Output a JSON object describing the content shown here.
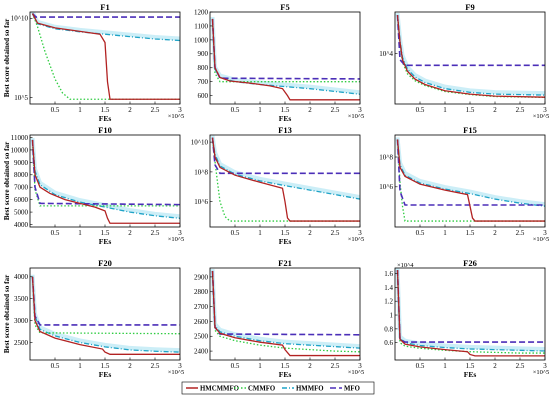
{
  "figure": {
    "legend": [
      {
        "name": "HMCMMFO",
        "color": "#b22222",
        "dash": ""
      },
      {
        "name": "CMMFO",
        "color": "#2ecc40",
        "dash": "1.5,2"
      },
      {
        "name": "HMMFO",
        "color": "#1fa3c7",
        "dash": "5,2,1,2"
      },
      {
        "name": "MFO",
        "color": "#4b2fb8",
        "dash": "6,3"
      }
    ]
  },
  "chart_data": [
    {
      "type": "line",
      "title": "F1",
      "xlabel": "FEs",
      "ylabel": "Best score obtained so far",
      "xscale_note": "×10^5",
      "log": true,
      "ylim": [
        40000,
        25000000000
      ],
      "xlim": [
        0,
        3
      ],
      "xticks": [
        0.5,
        1,
        1.5,
        2,
        2.5,
        3
      ],
      "xtick_labels": [
        "0.5",
        "1",
        "1.5",
        "2",
        "2.5",
        "3"
      ],
      "yticks": [
        10000000000,
        100000
      ],
      "ytick_labels": [
        "10^10",
        "10^5"
      ],
      "series": [
        {
          "name": "HMCMMFO",
          "x": [
            0.05,
            0.15,
            0.5,
            1.0,
            1.4,
            1.5,
            1.55,
            1.6,
            3.0
          ],
          "y": [
            20000000000,
            5000000000,
            2500000000,
            1500000000,
            1000000000,
            300000000,
            1000000,
            80000,
            80000
          ]
        },
        {
          "name": "CMMFO",
          "x": [
            0.05,
            0.15,
            0.3,
            0.5,
            0.65,
            0.8,
            3.0
          ],
          "y": [
            20000000000,
            3000000000,
            80000000,
            1500000,
            200000,
            80000,
            80000
          ]
        },
        {
          "name": "HMMFO",
          "x": [
            0.05,
            0.15,
            0.5,
            1.0,
            1.5,
            2.0,
            2.5,
            3.0
          ],
          "y": [
            20000000000,
            4500000000,
            2200000000,
            1400000000,
            1000000000,
            700000000,
            500000000,
            400000000
          ]
        },
        {
          "name": "MFO",
          "x": [
            0.05,
            0.12,
            0.2,
            3.0
          ],
          "y": [
            20000000000,
            12000000000,
            12000000000,
            12000000000
          ]
        }
      ]
    },
    {
      "type": "line",
      "title": "F5",
      "xlabel": "FEs",
      "ylabel": "",
      "xscale_note": "×10^5",
      "log": false,
      "ylim": [
        540,
        1200
      ],
      "xlim": [
        0,
        3
      ],
      "xticks": [
        0.5,
        1,
        1.5,
        2,
        2.5,
        3
      ],
      "xtick_labels": [
        "0.5",
        "1",
        "1.5",
        "2",
        "2.5",
        "3"
      ],
      "yticks": [
        600,
        700,
        800,
        900,
        1000,
        1100,
        1200
      ],
      "ytick_labels": [
        "600",
        "700",
        "800",
        "900",
        "1000",
        "1100",
        "1200"
      ],
      "series": [
        {
          "name": "HMCMMFO",
          "x": [
            0.05,
            0.1,
            0.2,
            0.4,
            0.8,
            1.2,
            1.45,
            1.55,
            1.6,
            3.0
          ],
          "y": [
            1150,
            800,
            730,
            705,
            690,
            670,
            650,
            600,
            570,
            570
          ]
        },
        {
          "name": "CMMFO",
          "x": [
            0.05,
            0.1,
            0.2,
            3.0
          ],
          "y": [
            1150,
            760,
            700,
            700
          ]
        },
        {
          "name": "HMMFO",
          "x": [
            0.05,
            0.1,
            0.2,
            0.5,
            1.0,
            1.5,
            2.0,
            2.5,
            3.0
          ],
          "y": [
            1150,
            790,
            730,
            700,
            680,
            665,
            650,
            630,
            610
          ]
        },
        {
          "name": "MFO",
          "x": [
            0.05,
            0.1,
            0.2,
            3.0
          ],
          "y": [
            1150,
            800,
            725,
            720
          ]
        }
      ]
    },
    {
      "type": "line",
      "title": "F9",
      "xlabel": "",
      "ylabel": "",
      "xscale_note": "×10^5",
      "log": true,
      "ylim": [
        500,
        120000
      ],
      "xlim": [
        0,
        3
      ],
      "xticks": [
        0.5,
        1,
        1.5,
        2,
        2.5,
        3
      ],
      "xtick_labels": [
        "0.5",
        "1",
        "1.5",
        "2",
        "2.5",
        "3"
      ],
      "yticks": [
        10000
      ],
      "ytick_labels": [
        "10^4"
      ],
      "series": [
        {
          "name": "HMCMMFO",
          "x": [
            0.05,
            0.1,
            0.15,
            0.25,
            0.4,
            0.6,
            1.0,
            1.5,
            2.0,
            3.0
          ],
          "y": [
            100000,
            20000,
            7000,
            3500,
            2200,
            1600,
            1100,
            900,
            800,
            750
          ]
        },
        {
          "name": "CMMFO",
          "x": [
            0.05,
            0.1,
            0.15,
            0.25,
            0.4,
            0.6,
            1.0,
            1.5,
            2.0,
            3.0
          ],
          "y": [
            100000,
            18000,
            6000,
            3000,
            2000,
            1500,
            1050,
            880,
            780,
            740
          ]
        },
        {
          "name": "HMMFO",
          "x": [
            0.05,
            0.1,
            0.15,
            0.25,
            0.4,
            0.6,
            1.0,
            1.5,
            2.0,
            3.0
          ],
          "y": [
            100000,
            22000,
            8000,
            4000,
            2500,
            1800,
            1250,
            1000,
            900,
            850
          ]
        },
        {
          "name": "MFO",
          "x": [
            0.05,
            0.1,
            0.2,
            3.0
          ],
          "y": [
            100000,
            7000,
            5000,
            5000
          ]
        }
      ]
    },
    {
      "type": "line",
      "title": "F10",
      "xlabel": "FEs",
      "ylabel": "Best score obtained so far",
      "xscale_note": "×10^5",
      "log": false,
      "ylim": [
        3800,
        11200
      ],
      "xlim": [
        0,
        3
      ],
      "xticks": [
        0.5,
        1,
        1.5,
        2,
        2.5,
        3
      ],
      "xtick_labels": [
        "0.5",
        "1",
        "1.5",
        "2",
        "2.5",
        "3"
      ],
      "yticks": [
        4000,
        5000,
        6000,
        7000,
        8000,
        9000,
        10000,
        11000
      ],
      "ytick_labels": [
        "4000",
        "5000",
        "6000",
        "7000",
        "8000",
        "9000",
        "10000",
        "11000"
      ],
      "series": [
        {
          "name": "HMCMMFO",
          "x": [
            0.05,
            0.1,
            0.2,
            0.4,
            0.7,
            1.0,
            1.3,
            1.5,
            1.55,
            1.6,
            3.0
          ],
          "y": [
            10800,
            8000,
            7000,
            6500,
            6000,
            5700,
            5400,
            5100,
            4500,
            4100,
            4100
          ]
        },
        {
          "name": "CMMFO",
          "x": [
            0.05,
            0.1,
            0.2,
            3.0
          ],
          "y": [
            10800,
            6800,
            5500,
            5500
          ]
        },
        {
          "name": "HMMFO",
          "x": [
            0.05,
            0.1,
            0.2,
            0.5,
            1.0,
            1.5,
            2.0,
            2.5,
            3.0
          ],
          "y": [
            10800,
            8300,
            7200,
            6400,
            5800,
            5400,
            5000,
            4700,
            4500
          ]
        },
        {
          "name": "MFO",
          "x": [
            0.05,
            0.1,
            0.2,
            3.0
          ],
          "y": [
            10800,
            7000,
            5700,
            5600
          ]
        }
      ]
    },
    {
      "type": "line",
      "title": "F13",
      "xlabel": "FEs",
      "ylabel": "",
      "xscale_note": "×10^5",
      "log": true,
      "ylim": [
        20000,
        30000000000
      ],
      "xlim": [
        0,
        3
      ],
      "xticks": [
        0.5,
        1,
        1.5,
        2,
        2.5,
        3
      ],
      "xtick_labels": [
        "0.5",
        "1",
        "1.5",
        "2",
        "2.5",
        "3"
      ],
      "yticks": [
        10000000000,
        100000000,
        1000000
      ],
      "ytick_labels": [
        "10^10",
        "10^8",
        "10^6"
      ],
      "series": [
        {
          "name": "HMCMMFO",
          "x": [
            0.05,
            0.1,
            0.2,
            0.5,
            1.0,
            1.45,
            1.5,
            1.55,
            1.6,
            3.0
          ],
          "y": [
            20000000000,
            1000000000,
            200000000,
            60000000,
            20000000,
            8000000,
            1000000,
            80000,
            50000,
            50000
          ]
        },
        {
          "name": "CMMFO",
          "x": [
            0.05,
            0.1,
            0.15,
            0.2,
            0.3,
            0.4,
            3.0
          ],
          "y": [
            20000000000,
            500000000,
            20000000,
            1000000,
            100000,
            50000,
            50000
          ]
        },
        {
          "name": "HMMFO",
          "x": [
            0.05,
            0.1,
            0.2,
            0.5,
            1.0,
            1.5,
            2.0,
            2.5,
            3.0
          ],
          "y": [
            20000000000,
            1500000000,
            250000000,
            70000000,
            25000000,
            12000000,
            6000000,
            3000000,
            1500000
          ]
        },
        {
          "name": "MFO",
          "x": [
            0.05,
            0.1,
            0.2,
            3.0
          ],
          "y": [
            20000000000,
            300000000,
            80000000,
            80000000
          ]
        }
      ]
    },
    {
      "type": "line",
      "title": "F15",
      "xlabel": "",
      "ylabel": "",
      "xscale_note": "×10^5",
      "log": true,
      "ylim": [
        2000,
        3000000000
      ],
      "xlim": [
        0,
        3
      ],
      "xticks": [
        0.5,
        1,
        1.5,
        2,
        2.5,
        3
      ],
      "xtick_labels": [
        "0.5",
        "1",
        "1.5",
        "2",
        "2.5",
        "3"
      ],
      "yticks": [
        100000000,
        1000000
      ],
      "ytick_labels": [
        "10^8",
        "10^6"
      ],
      "series": [
        {
          "name": "HMCMMFO",
          "x": [
            0.05,
            0.1,
            0.2,
            0.5,
            1.0,
            1.45,
            1.5,
            1.55,
            1.6,
            3.0
          ],
          "y": [
            1500000000,
            20000000,
            5000000,
            1500000,
            600000,
            300000,
            50000,
            8000,
            5000,
            5000
          ]
        },
        {
          "name": "CMMFO",
          "x": [
            0.05,
            0.1,
            0.15,
            0.2,
            3.0
          ],
          "y": [
            1500000000,
            2000000,
            50000,
            5000,
            5000
          ]
        },
        {
          "name": "HMMFO",
          "x": [
            0.05,
            0.1,
            0.2,
            0.5,
            1.0,
            1.5,
            2.0,
            2.5,
            3.0
          ],
          "y": [
            1500000000,
            30000000,
            6000000,
            1800000,
            700000,
            350000,
            150000,
            80000,
            50000
          ]
        },
        {
          "name": "MFO",
          "x": [
            0.05,
            0.1,
            0.2,
            3.0
          ],
          "y": [
            1500000000,
            500000,
            60000,
            60000
          ]
        }
      ]
    },
    {
      "type": "line",
      "title": "F20",
      "xlabel": "FEs",
      "ylabel": "Best score obtained so far",
      "xscale_note": "×10^5",
      "log": false,
      "ylim": [
        2100,
        4200
      ],
      "xlim": [
        0,
        3
      ],
      "xticks": [
        0.5,
        1,
        1.5,
        2,
        2.5,
        3
      ],
      "xtick_labels": [
        "0.5",
        "1",
        "1.5",
        "2",
        "2.5",
        "3"
      ],
      "yticks": [
        2500,
        3000,
        3500,
        4000
      ],
      "ytick_labels": [
        "2500",
        "3000",
        "3500",
        "4000"
      ],
      "series": [
        {
          "name": "HMCMMFO",
          "x": [
            0.05,
            0.1,
            0.2,
            0.5,
            1.0,
            1.45,
            1.5,
            1.6,
            3.0
          ],
          "y": [
            4000,
            3000,
            2750,
            2600,
            2450,
            2350,
            2280,
            2230,
            2230
          ]
        },
        {
          "name": "CMMFO",
          "x": [
            0.05,
            0.1,
            0.2,
            3.0
          ],
          "y": [
            4000,
            2900,
            2720,
            2700
          ]
        },
        {
          "name": "HMMFO",
          "x": [
            0.05,
            0.1,
            0.2,
            0.5,
            1.0,
            1.5,
            2.0,
            2.5,
            3.0
          ],
          "y": [
            4000,
            3100,
            2800,
            2650,
            2500,
            2400,
            2330,
            2300,
            2280
          ]
        },
        {
          "name": "MFO",
          "x": [
            0.05,
            0.1,
            0.2,
            3.0
          ],
          "y": [
            4000,
            3100,
            2900,
            2900
          ]
        }
      ]
    },
    {
      "type": "line",
      "title": "F21",
      "xlabel": "FEs",
      "ylabel": "",
      "xscale_note": "×10^5",
      "log": false,
      "ylim": [
        2340,
        2960
      ],
      "xlim": [
        0,
        3
      ],
      "xticks": [
        0.5,
        1,
        1.5,
        2,
        2.5,
        3
      ],
      "xtick_labels": [
        "0.5",
        "1",
        "1.5",
        "2",
        "2.5",
        "3"
      ],
      "yticks": [
        2400,
        2500,
        2600,
        2700,
        2800,
        2900
      ],
      "ytick_labels": [
        "2400",
        "2500",
        "2600",
        "2700",
        "2800",
        "2900"
      ],
      "series": [
        {
          "name": "HMCMMFO",
          "x": [
            0.05,
            0.1,
            0.2,
            0.5,
            1.0,
            1.45,
            1.5,
            1.6,
            3.0
          ],
          "y": [
            2940,
            2560,
            2520,
            2490,
            2460,
            2440,
            2410,
            2370,
            2370
          ]
        },
        {
          "name": "CMMFO",
          "x": [
            0.05,
            0.1,
            0.2,
            0.5,
            1.0,
            1.5,
            2.0,
            2.5,
            3.0
          ],
          "y": [
            2940,
            2540,
            2500,
            2470,
            2440,
            2420,
            2410,
            2400,
            2395
          ]
        },
        {
          "name": "HMMFO",
          "x": [
            0.05,
            0.1,
            0.2,
            0.5,
            1.0,
            1.5,
            2.0,
            2.5,
            3.0
          ],
          "y": [
            2940,
            2570,
            2530,
            2500,
            2470,
            2450,
            2440,
            2430,
            2420
          ]
        },
        {
          "name": "MFO",
          "x": [
            0.05,
            0.1,
            0.2,
            3.0
          ],
          "y": [
            2940,
            2560,
            2515,
            2510
          ]
        }
      ]
    },
    {
      "type": "line",
      "title": "F26",
      "xlabel": "FEs",
      "ylabel": "",
      "xscale_note": "×10^5",
      "yscale_note": "×10^4",
      "log": false,
      "ylim": [
        0.35,
        1.68
      ],
      "xlim": [
        0,
        3
      ],
      "xticks": [
        0.5,
        1,
        1.5,
        2,
        2.5,
        3
      ],
      "xtick_labels": [
        "0.5",
        "1",
        "1.5",
        "2",
        "2.5",
        "3"
      ],
      "yticks": [
        0.6,
        0.8,
        1,
        1.2,
        1.4,
        1.6
      ],
      "ytick_labels": [
        "0.6",
        "0.8",
        "1",
        "1.2",
        "1.4",
        "1.6"
      ],
      "series": [
        {
          "name": "HMCMMFO",
          "x": [
            0.05,
            0.1,
            0.2,
            0.5,
            1.0,
            1.45,
            1.5,
            1.6,
            3.0
          ],
          "y": [
            1.65,
            0.65,
            0.58,
            0.54,
            0.5,
            0.47,
            0.43,
            0.41,
            0.41
          ]
        },
        {
          "name": "CMMFO",
          "x": [
            0.05,
            0.1,
            0.2,
            0.5,
            1.0,
            1.5,
            2.0,
            2.5,
            3.0
          ],
          "y": [
            1.65,
            0.6,
            0.55,
            0.52,
            0.49,
            0.47,
            0.46,
            0.45,
            0.45
          ]
        },
        {
          "name": "HMMFO",
          "x": [
            0.05,
            0.1,
            0.2,
            0.5,
            1.0,
            1.5,
            2.0,
            2.5,
            3.0
          ],
          "y": [
            1.65,
            0.66,
            0.6,
            0.56,
            0.53,
            0.51,
            0.5,
            0.49,
            0.48
          ]
        },
        {
          "name": "MFO",
          "x": [
            0.05,
            0.1,
            0.2,
            3.0
          ],
          "y": [
            1.65,
            0.65,
            0.61,
            0.61
          ]
        }
      ]
    }
  ]
}
